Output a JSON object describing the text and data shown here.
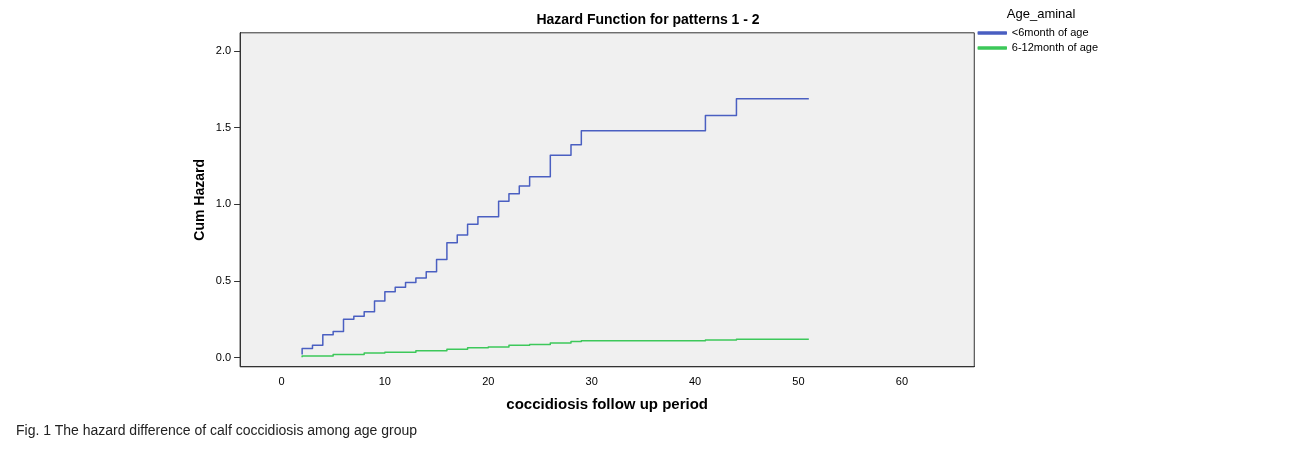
{
  "chart_data": {
    "type": "step",
    "title": "Hazard Function for patterns 1 - 2",
    "xlabel": "coccidiosis follow up period",
    "ylabel": "Cum Hazard",
    "legend_title": "Age_aminal",
    "legend": "top right",
    "grid": false,
    "marker": "none",
    "line_style": "solid",
    "xlim": [
      -4,
      67
    ],
    "xticks": [
      0,
      10,
      20,
      30,
      40,
      50,
      60
    ],
    "ylim": [
      -0.06,
      2.12
    ],
    "yticks": [
      {
        "value": 0,
        "label": "0.0"
      },
      {
        "value": 0.5,
        "label": "0.5"
      },
      {
        "value": 1,
        "label": "1.0"
      },
      {
        "value": 1.5,
        "label": "1.5"
      },
      {
        "value": 2,
        "label": "2.0"
      }
    ],
    "series": [
      {
        "name": "<6month of age",
        "color": "#4a5fc1",
        "x": [
          2,
          3,
          4,
          5,
          6,
          7,
          8,
          9,
          10,
          11,
          12,
          13,
          14,
          15,
          16,
          17,
          18,
          19,
          21,
          22,
          23,
          24,
          26,
          28,
          29,
          41,
          44,
          51
        ],
        "values": [
          0.02,
          0.06,
          0.08,
          0.15,
          0.17,
          0.25,
          0.27,
          0.3,
          0.37,
          0.43,
          0.46,
          0.49,
          0.52,
          0.56,
          0.64,
          0.75,
          0.8,
          0.87,
          0.92,
          1.02,
          1.07,
          1.12,
          1.18,
          1.32,
          1.39,
          1.48,
          1.58,
          1.69
        ]
      },
      {
        "name": "6-12month of age",
        "color": "#3dc85a",
        "x": [
          2,
          5,
          8,
          10,
          13,
          16,
          18,
          20,
          22,
          24,
          26,
          28,
          29,
          41,
          44,
          51
        ],
        "values": [
          0.003,
          0.01,
          0.02,
          0.03,
          0.035,
          0.045,
          0.055,
          0.065,
          0.07,
          0.08,
          0.085,
          0.095,
          0.105,
          0.11,
          0.115,
          0.12
        ]
      }
    ],
    "annotations": [
      "Fig. 1 The hazard difference of calf coccidiosis among age group"
    ]
  }
}
